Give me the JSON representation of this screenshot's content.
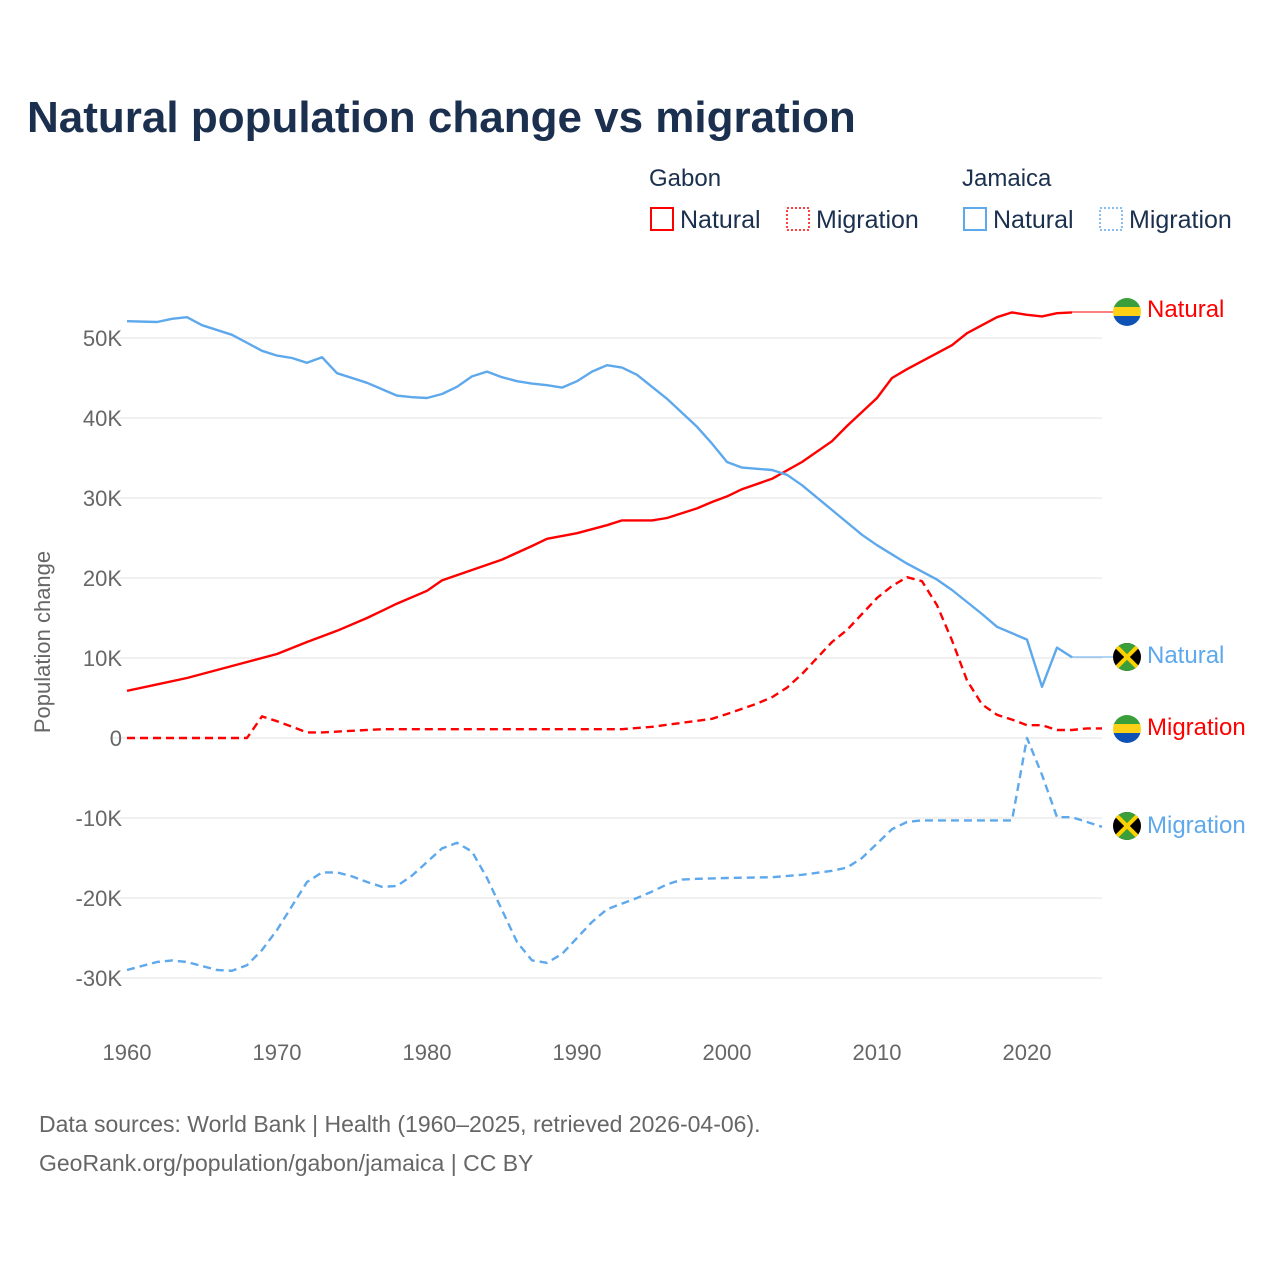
{
  "chart_data": {
    "type": "line",
    "title": "Natural population change vs migration",
    "xlabel": "",
    "ylabel": "Population change",
    "xlim": [
      1960,
      2025
    ],
    "ylim": [
      -35000,
      55000
    ],
    "grid": true,
    "x_ticks": [
      1960,
      1970,
      1980,
      1990,
      2000,
      2010,
      2020
    ],
    "x_tick_labels": [
      "1960",
      "1970",
      "1980",
      "1990",
      "2000",
      "2010",
      "2020"
    ],
    "y_ticks": [
      -30000,
      -20000,
      -10000,
      0,
      10000,
      20000,
      30000,
      40000,
      50000
    ],
    "y_tick_labels": [
      "-30K",
      "-20K",
      "-10K",
      "0",
      "10K",
      "20K",
      "30K",
      "40K",
      "50K"
    ],
    "legend_placement": "top-right",
    "legend": {
      "groups": [
        {
          "country": "Gabon",
          "items": [
            "Natural",
            "Migration"
          ]
        },
        {
          "country": "Jamaica",
          "items": [
            "Natural",
            "Migration"
          ]
        }
      ]
    },
    "series": [
      {
        "name": "Gabon Natural",
        "country": "Gabon",
        "kind": "Natural",
        "color": "#ff0000",
        "style": "solid",
        "end_label": "Natural",
        "x": [
          1960,
          1962,
          1964,
          1966,
          1968,
          1970,
          1972,
          1974,
          1976,
          1978,
          1980,
          1981,
          1983,
          1985,
          1987,
          1988,
          1990,
          1992,
          1993,
          1995,
          1996,
          1998,
          1999,
          2000,
          2001,
          2003,
          2005,
          2007,
          2008,
          2010,
          2011,
          2012,
          2014,
          2015,
          2016,
          2018,
          2019,
          2020,
          2021,
          2022,
          2023
        ],
        "y": [
          5900,
          6700,
          7500,
          8500,
          9500,
          10500,
          12000,
          13400,
          15000,
          16800,
          18400,
          19700,
          21000,
          22300,
          24000,
          24900,
          25600,
          26600,
          27200,
          27200,
          27500,
          28700,
          29500,
          30200,
          31100,
          32400,
          34500,
          37100,
          39000,
          42500,
          45000,
          46100,
          48100,
          49100,
          50600,
          52600,
          53200,
          52900,
          52700,
          53100,
          53200
        ]
      },
      {
        "name": "Gabon Migration",
        "country": "Gabon",
        "kind": "Migration",
        "color": "#ff0000",
        "style": "dashed",
        "end_label": "Migration",
        "x": [
          1960,
          1962,
          1964,
          1966,
          1968,
          1969,
          1970,
          1972,
          1973,
          1975,
          1977,
          1980,
          1985,
          1990,
          1993,
          1995,
          1997,
          1999,
          2000,
          2002,
          2003,
          2004,
          2005,
          2006,
          2007,
          2008,
          2009,
          2010,
          2011,
          2012,
          2013,
          2014,
          2015,
          2016,
          2017,
          2018,
          2019,
          2020,
          2021,
          2022,
          2023,
          2024,
          2025
        ],
        "y": [
          0,
          0,
          0,
          0,
          0,
          2700,
          2100,
          700,
          700,
          900,
          1100,
          1100,
          1100,
          1100,
          1100,
          1400,
          1900,
          2400,
          3000,
          4300,
          5100,
          6300,
          8000,
          10000,
          12000,
          13500,
          15500,
          17500,
          19000,
          20100,
          19600,
          16600,
          12200,
          7200,
          4200,
          2900,
          2300,
          1600,
          1600,
          1000,
          1000,
          1200,
          1200
        ]
      },
      {
        "name": "Jamaica Natural",
        "country": "Jamaica",
        "kind": "Natural",
        "color": "#5ea8ec",
        "style": "solid",
        "end_label": "Natural",
        "x": [
          1960,
          1962,
          1963,
          1964,
          1965,
          1967,
          1969,
          1970,
          1971,
          1972,
          1973,
          1974,
          1976,
          1978,
          1979,
          1980,
          1981,
          1982,
          1983,
          1984,
          1985,
          1986,
          1987,
          1988,
          1989,
          1990,
          1991,
          1992,
          1993,
          1994,
          1996,
          1998,
          1999,
          2000,
          2001,
          2003,
          2004,
          2005,
          2007,
          2009,
          2010,
          2012,
          2014,
          2015,
          2017,
          2018,
          2020,
          2021,
          2022,
          2023
        ],
        "y": [
          52100,
          52000,
          52400,
          52600,
          51600,
          50400,
          48400,
          47800,
          47500,
          46900,
          47600,
          45600,
          44400,
          42800,
          42600,
          42500,
          43000,
          43900,
          45200,
          45800,
          45100,
          44600,
          44300,
          44100,
          43800,
          44600,
          45800,
          46600,
          46300,
          45400,
          42400,
          38900,
          36800,
          34500,
          33800,
          33500,
          32900,
          31600,
          28500,
          25400,
          24100,
          21800,
          19800,
          18500,
          15500,
          13900,
          12300,
          6400,
          11300,
          10100
        ]
      },
      {
        "name": "Jamaica Migration",
        "country": "Jamaica",
        "kind": "Migration",
        "color": "#5ea8ec",
        "style": "dashed",
        "end_label": "Migration",
        "x": [
          1960,
          1962,
          1963,
          1964,
          1965,
          1966,
          1967,
          1968,
          1969,
          1970,
          1971,
          1972,
          1973,
          1974,
          1975,
          1976,
          1977,
          1978,
          1979,
          1980,
          1981,
          1982,
          1983,
          1984,
          1985,
          1986,
          1987,
          1988,
          1989,
          1990,
          1991,
          1992,
          1993,
          1994,
          1995,
          1996,
          1997,
          1998,
          2000,
          2003,
          2005,
          2007,
          2008,
          2009,
          2010,
          2011,
          2012,
          2013,
          2019,
          2020,
          2021,
          2022,
          2023,
          2024,
          2025
        ],
        "y": [
          -29000,
          -28000,
          -27800,
          -28000,
          -28500,
          -29000,
          -29100,
          -28400,
          -26500,
          -24000,
          -21000,
          -18000,
          -16800,
          -16800,
          -17300,
          -18000,
          -18600,
          -18500,
          -17200,
          -15500,
          -13800,
          -13100,
          -14200,
          -17500,
          -21500,
          -25500,
          -27800,
          -28100,
          -27000,
          -25000,
          -23000,
          -21400,
          -20700,
          -20000,
          -19200,
          -18300,
          -17700,
          -17600,
          -17500,
          -17400,
          -17100,
          -16600,
          -16200,
          -15000,
          -13200,
          -11400,
          -10500,
          -10300,
          -10300,
          0,
          -4600,
          -9900,
          -9900,
          -10500,
          -11100
        ]
      }
    ]
  },
  "footer": {
    "line1": "Data sources: World Bank | Health (1960–2025, retrieved 2026-04-06).",
    "line2": "GeoRank.org/population/gabon/jamaica | CC BY"
  },
  "colors": {
    "gabon": "#ff0000",
    "jamaica": "#5ea8ec",
    "title": "#1b2f4e"
  },
  "flags": {
    "gabon": "gabon-flag-icon",
    "jamaica": "jamaica-flag-icon"
  }
}
